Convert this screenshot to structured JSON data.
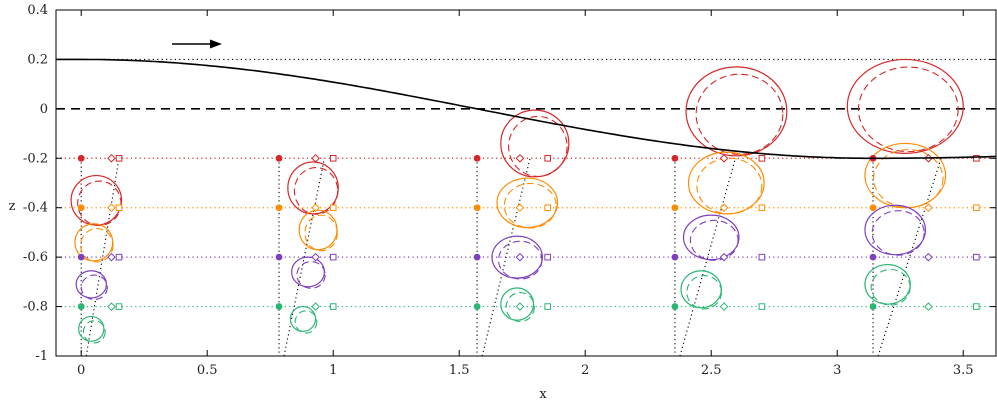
{
  "chart_data": {
    "type": "line",
    "xlabel": "x",
    "ylabel": "z",
    "xlim": [
      -0.1,
      3.63
    ],
    "ylim": [
      -1.0,
      0.4
    ],
    "xticks": [
      0,
      0.5,
      1,
      1.5,
      2,
      2.5,
      3,
      3.5
    ],
    "xtick_labels": [
      "0",
      "0.5",
      "1",
      "1.5",
      "2",
      "2.5",
      "3",
      "3.5"
    ],
    "yticks": [
      -1.0,
      -0.8,
      -0.6,
      -0.4,
      -0.2,
      0,
      0.2,
      0.4
    ],
    "ytick_labels": [
      "-1",
      "-0.8",
      "-0.6",
      "-0.4",
      "-0.2",
      "0",
      "0.2",
      "0.4"
    ],
    "grid": false,
    "colors": {
      "depth_-0.2": "#d62728",
      "depth_-0.4": "#ff8c00",
      "depth_-0.6": "#7e3fbf",
      "depth_-0.8": "#2bb673",
      "surface": "#000000"
    },
    "wave_direction_arrow": "right",
    "reference_lines": [
      {
        "y": 0.2,
        "style": "dotted",
        "color": "#000000"
      },
      {
        "y": 0.0,
        "style": "dashed",
        "color": "#000000"
      },
      {
        "y": -0.2,
        "style": "dotted",
        "color": "#d62728"
      },
      {
        "y": -0.4,
        "style": "dotted",
        "color": "#ff8c00"
      },
      {
        "y": -0.6,
        "style": "dotted",
        "color": "#7e3fbf"
      },
      {
        "y": -0.8,
        "style": "dotted",
        "color": "#2bb673"
      }
    ],
    "surface_profile": {
      "amplitude": 0.2,
      "mean": 0.0,
      "x_crest": 0.0,
      "x_trough": 3.1416
    },
    "stations_x": [
      0,
      0.785,
      1.571,
      2.356,
      3.142
    ],
    "depths": [
      -0.2,
      -0.4,
      -0.6,
      -0.8
    ],
    "orbits": [
      {
        "station": 0,
        "depth": -0.2,
        "cx": 0.06,
        "cz": -0.37,
        "rx": 0.1,
        "rz": 0.1
      },
      {
        "station": 0,
        "depth": -0.4,
        "cx": 0.05,
        "cz": -0.54,
        "rx": 0.075,
        "rz": 0.075
      },
      {
        "station": 0,
        "depth": -0.6,
        "cx": 0.04,
        "cz": -0.71,
        "rx": 0.06,
        "rz": 0.055
      },
      {
        "station": 0,
        "depth": -0.8,
        "cx": 0.04,
        "cz": -0.89,
        "rx": 0.05,
        "rz": 0.05
      },
      {
        "station": 1,
        "depth": -0.2,
        "cx": 0.92,
        "cz": -0.32,
        "rx": 0.1,
        "rz": 0.105
      },
      {
        "station": 1,
        "depth": -0.4,
        "cx": 0.94,
        "cz": -0.49,
        "rx": 0.075,
        "rz": 0.08
      },
      {
        "station": 1,
        "depth": -0.6,
        "cx": 0.9,
        "cz": -0.66,
        "rx": 0.065,
        "rz": 0.06
      },
      {
        "station": 1,
        "depth": -0.8,
        "cx": 0.88,
        "cz": -0.85,
        "rx": 0.05,
        "rz": 0.05
      },
      {
        "station": 2,
        "depth": -0.2,
        "cx": 1.8,
        "cz": -0.14,
        "rx": 0.135,
        "rz": 0.135
      },
      {
        "station": 2,
        "depth": -0.4,
        "cx": 1.77,
        "cz": -0.38,
        "rx": 0.12,
        "rz": 0.1
      },
      {
        "station": 2,
        "depth": -0.6,
        "cx": 1.73,
        "cz": -0.6,
        "rx": 0.1,
        "rz": 0.085
      },
      {
        "station": 2,
        "depth": -0.8,
        "cx": 1.73,
        "cz": -0.79,
        "rx": 0.065,
        "rz": 0.065
      },
      {
        "station": 3,
        "depth": -0.2,
        "cx": 2.6,
        "cz": -0.01,
        "rx": 0.2,
        "rz": 0.18
      },
      {
        "station": 3,
        "depth": -0.4,
        "cx": 2.56,
        "cz": -0.3,
        "rx": 0.15,
        "rz": 0.125
      },
      {
        "station": 3,
        "depth": -0.6,
        "cx": 2.5,
        "cz": -0.52,
        "rx": 0.11,
        "rz": 0.09
      },
      {
        "station": 3,
        "depth": -0.8,
        "cx": 2.46,
        "cz": -0.73,
        "rx": 0.08,
        "rz": 0.075
      },
      {
        "station": 4,
        "depth": -0.2,
        "cx": 3.27,
        "cz": 0.01,
        "rx": 0.23,
        "rz": 0.19
      },
      {
        "station": 4,
        "depth": -0.4,
        "cx": 3.27,
        "cz": -0.27,
        "rx": 0.16,
        "rz": 0.13
      },
      {
        "station": 4,
        "depth": -0.6,
        "cx": 3.23,
        "cz": -0.49,
        "rx": 0.12,
        "rz": 0.1
      },
      {
        "station": 4,
        "depth": -0.8,
        "cx": 3.2,
        "cz": -0.71,
        "rx": 0.09,
        "rz": 0.08
      }
    ]
  }
}
